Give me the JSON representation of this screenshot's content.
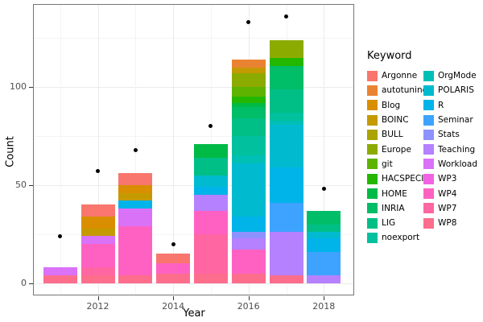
{
  "chart_data": {
    "type": "bar",
    "stacked": true,
    "title": "",
    "xlabel": "Year",
    "ylabel": "Count",
    "legend_title": "Keyword",
    "legend_position": "right",
    "grid": true,
    "x_ticks": [
      2012,
      2014,
      2016,
      2018
    ],
    "x_minor": [
      2011,
      2013,
      2015,
      2017
    ],
    "y_ticks": [
      0,
      50,
      100
    ],
    "y_minor": [
      25,
      75,
      125
    ],
    "ylim": [
      0,
      144
    ],
    "point_color": "#000000",
    "keywords": [
      {
        "name": "Argonne",
        "color": "#F8766D"
      },
      {
        "name": "autotuning",
        "color": "#EA8331"
      },
      {
        "name": "Blog",
        "color": "#D98E00"
      },
      {
        "name": "BOINC",
        "color": "#C49A00"
      },
      {
        "name": "BULL",
        "color": "#ABA300"
      },
      {
        "name": "Europe",
        "color": "#8CAB00"
      },
      {
        "name": "git",
        "color": "#5EB300"
      },
      {
        "name": "HACSPECIS",
        "color": "#24B700"
      },
      {
        "name": "HOME",
        "color": "#00BA46"
      },
      {
        "name": "INRIA",
        "color": "#00BD68"
      },
      {
        "name": "LIG",
        "color": "#00BF86"
      },
      {
        "name": "noexport",
        "color": "#00C09E"
      },
      {
        "name": "OrgMode",
        "color": "#00BFB5"
      },
      {
        "name": "POLARIS",
        "color": "#00BBD0"
      },
      {
        "name": "R",
        "color": "#00B3E9"
      },
      {
        "name": "Seminar",
        "color": "#3DA3FF"
      },
      {
        "name": "Stats",
        "color": "#8E92FF"
      },
      {
        "name": "Teaching",
        "color": "#B581FF"
      },
      {
        "name": "Workload",
        "color": "#DA72F8"
      },
      {
        "name": "WP3",
        "color": "#F163E2"
      },
      {
        "name": "WP4",
        "color": "#FF61C3"
      },
      {
        "name": "WP7",
        "color": "#FF66A2"
      },
      {
        "name": "WP8",
        "color": "#FC6E8C"
      }
    ],
    "bars": [
      {
        "year": 2011,
        "total": 8,
        "segments": [
          [
            "WP8",
            4
          ],
          [
            "Workload",
            4
          ]
        ]
      },
      {
        "year": 2012,
        "total": 40,
        "segments": [
          [
            "WP8",
            4
          ],
          [
            "WP7",
            4
          ],
          [
            "WP4",
            12
          ],
          [
            "Workload",
            4
          ],
          [
            "BOINC",
            4
          ],
          [
            "Blog",
            6
          ],
          [
            "Argonne",
            6
          ]
        ]
      },
      {
        "year": 2013,
        "total": 56,
        "segments": [
          [
            "WP8",
            4
          ],
          [
            "WP4",
            25
          ],
          [
            "Workload",
            9
          ],
          [
            "R",
            4
          ],
          [
            "BOINC",
            4
          ],
          [
            "Blog",
            4
          ],
          [
            "Argonne",
            6
          ]
        ]
      },
      {
        "year": 2014,
        "total": 15,
        "segments": [
          [
            "WP8",
            5
          ],
          [
            "WP4",
            5
          ],
          [
            "Argonne",
            5
          ]
        ]
      },
      {
        "year": 2015,
        "total": 71,
        "segments": [
          [
            "WP8",
            5
          ],
          [
            "WP7",
            20
          ],
          [
            "WP4",
            12
          ],
          [
            "Teaching",
            8
          ],
          [
            "R",
            4
          ],
          [
            "POLARIS",
            6
          ],
          [
            "LIG",
            9
          ],
          [
            "HOME",
            7
          ]
        ]
      },
      {
        "year": 2016,
        "total": 114,
        "segments": [
          [
            "WP8",
            5
          ],
          [
            "WP4",
            12
          ],
          [
            "Teaching",
            6
          ],
          [
            "Stats",
            3
          ],
          [
            "R",
            8
          ],
          [
            "POLARIS",
            27
          ],
          [
            "OrgMode",
            4
          ],
          [
            "noexport",
            10
          ],
          [
            "LIG",
            9
          ],
          [
            "INRIA",
            6
          ],
          [
            "HOME",
            2
          ],
          [
            "HACSPECIS",
            3
          ],
          [
            "git",
            5
          ],
          [
            "Europe",
            7
          ],
          [
            "BOINC",
            3
          ],
          [
            "autotuning",
            4
          ]
        ]
      },
      {
        "year": 2017,
        "total": 124,
        "segments": [
          [
            "WP8",
            4
          ],
          [
            "Teaching",
            22
          ],
          [
            "Seminar",
            15
          ],
          [
            "R",
            18
          ],
          [
            "POLARIS",
            22
          ],
          [
            "OrgMode",
            2
          ],
          [
            "noexport",
            4
          ],
          [
            "LIG",
            12
          ],
          [
            "INRIA",
            12
          ],
          [
            "HACSPECIS",
            4
          ],
          [
            "Europe",
            9
          ]
        ]
      },
      {
        "year": 2018,
        "total": 37,
        "segments": [
          [
            "Teaching",
            4
          ],
          [
            "Seminar",
            12
          ],
          [
            "R",
            7
          ],
          [
            "POLARIS",
            3
          ],
          [
            "LIG",
            4
          ],
          [
            "INRIA",
            7
          ]
        ]
      }
    ],
    "points": [
      {
        "year": 2011,
        "value": 24
      },
      {
        "year": 2012,
        "value": 57
      },
      {
        "year": 2013,
        "value": 68
      },
      {
        "year": 2014,
        "value": 20
      },
      {
        "year": 2015,
        "value": 80
      },
      {
        "year": 2016,
        "value": 133
      },
      {
        "year": 2017,
        "value": 136
      },
      {
        "year": 2018,
        "value": 48
      }
    ]
  }
}
